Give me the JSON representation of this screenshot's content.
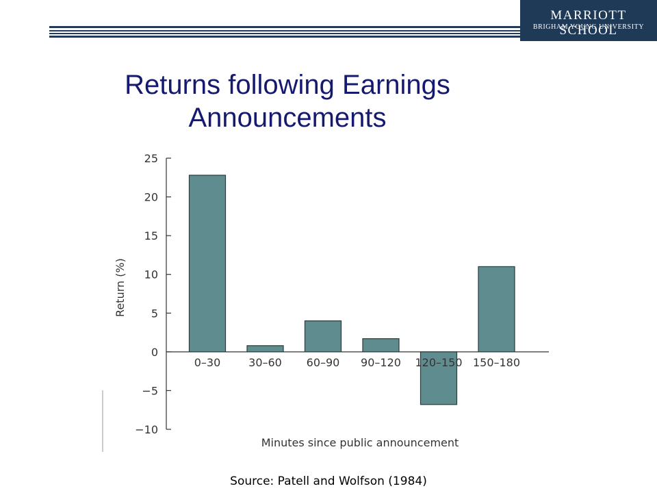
{
  "header": {
    "logo_line1": "MARRIOTT SCHOOL",
    "logo_line2": "BRIGHAM YOUNG UNIVERSITY",
    "brand_color": "#1f3a57"
  },
  "slide": {
    "title_line1": "Returns following Earnings",
    "title_line2": "Announcements",
    "source": "Source: Patell and Wolfson (1984)"
  },
  "chart_data": {
    "type": "bar",
    "categories": [
      "0–30",
      "30–60",
      "60–90",
      "90–120",
      "120–150",
      "150–180"
    ],
    "values": [
      22.8,
      0.8,
      4.0,
      1.7,
      -6.8,
      11.0
    ],
    "ylabel": "Return (%)",
    "xlabel": "Minutes since public announcement",
    "ylim": [
      -10,
      25
    ],
    "yticks": [
      25,
      20,
      15,
      10,
      5,
      0,
      -5,
      -10
    ],
    "ytick_labels": [
      "25",
      "20",
      "15",
      "10",
      "5",
      "0",
      "−5",
      "−10"
    ],
    "grid": false,
    "bar_color": "#5f8c8e"
  }
}
